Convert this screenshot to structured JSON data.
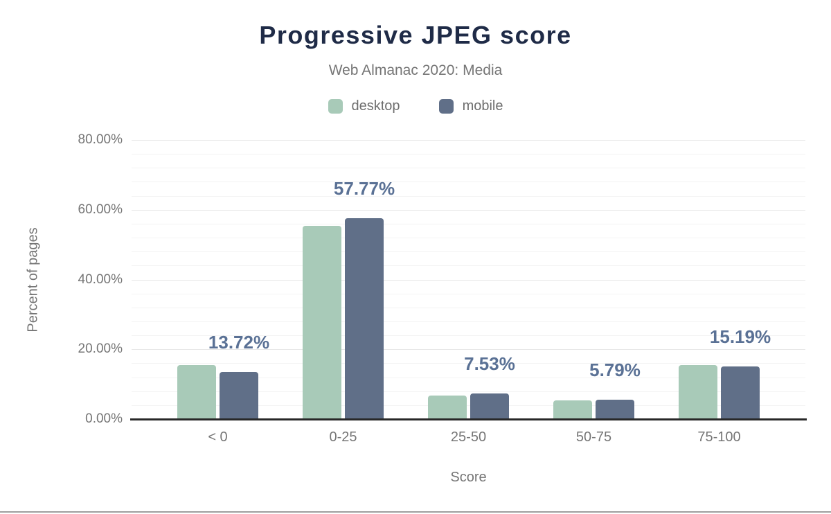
{
  "header": {
    "title": "Progressive JPEG score",
    "subtitle": "Web Almanac 2020: Media"
  },
  "legend": {
    "items": [
      {
        "label": "desktop",
        "color": "#a8cab8"
      },
      {
        "label": "mobile",
        "color": "#606f88"
      }
    ]
  },
  "axes": {
    "y_title": "Percent of pages",
    "x_title": "Score",
    "y_tick_labels": [
      "0.00%",
      "20.00%",
      "40.00%",
      "60.00%",
      "80.00%"
    ]
  },
  "chart_data": {
    "type": "bar",
    "title": "Progressive JPEG score",
    "subtitle": "Web Almanac 2020: Media",
    "categories": [
      "< 0",
      "0-25",
      "25-50",
      "50-75",
      "75-100"
    ],
    "series": [
      {
        "name": "desktop",
        "color": "#a8cab8",
        "values": [
          15.6,
          55.6,
          7.0,
          5.5,
          15.6
        ]
      },
      {
        "name": "mobile",
        "color": "#606f88",
        "values": [
          13.72,
          57.77,
          7.53,
          5.79,
          15.19
        ]
      }
    ],
    "value_labels": [
      "13.72%",
      "57.77%",
      "7.53%",
      "5.79%",
      "15.19%"
    ],
    "value_labels_series": "mobile",
    "xlabel": "Score",
    "ylabel": "Percent of pages",
    "ylim": [
      0,
      80
    ],
    "y_major_step": 20,
    "y_minor_step": 4,
    "grid": true,
    "legend_position": "top"
  },
  "colors": {
    "title": "#1f2b47",
    "subtitle_text": "#757575",
    "value_label": "#5a7195",
    "gridline_minor": "#f3f3f3",
    "gridline_major": "#e7e7e7",
    "axis_line": "#282828",
    "footer_divider": "#9e9e9e"
  }
}
